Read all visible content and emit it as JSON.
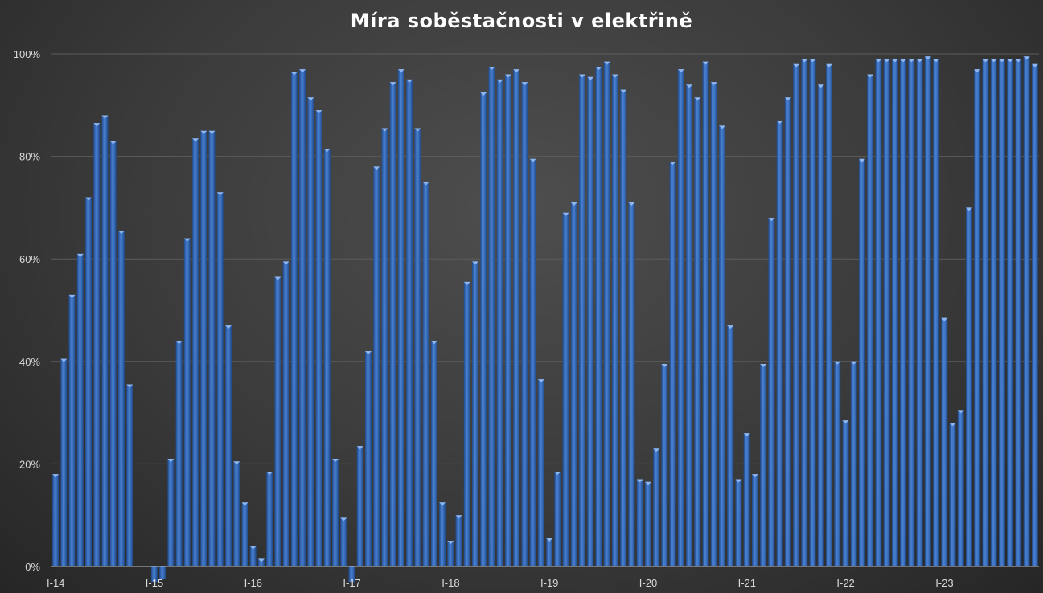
{
  "chart_data": {
    "type": "bar",
    "title": "Míra soběstačnosti v elektřině",
    "xlabel": "",
    "ylabel": "",
    "ylim": [
      0,
      1
    ],
    "y_ticks": [
      "0%",
      "20%",
      "40%",
      "60%",
      "80%",
      "100%"
    ],
    "x_ticks": [
      "I-14",
      "I-15",
      "I-16",
      "I-17",
      "I-18",
      "I-19",
      "I-20",
      "I-21",
      "I-22",
      "I-23"
    ],
    "grid": true,
    "legend": "none",
    "series": [
      {
        "color": "#3a6fc2",
        "values": [
          0.18,
          0.405,
          0.53,
          0.61,
          0.72,
          0.865,
          0.88,
          0.83,
          0.655,
          0.355,
          0.0,
          0.0,
          -0.03,
          -0.025,
          0.21,
          0.44,
          0.64,
          0.835,
          0.85,
          0.85,
          0.73,
          0.47,
          0.205,
          0.125,
          0.04,
          0.015,
          0.185,
          0.565,
          0.595,
          0.965,
          0.97,
          0.915,
          0.89,
          0.815,
          0.21,
          0.095,
          -0.03,
          0.235,
          0.42,
          0.78,
          0.855,
          0.945,
          0.97,
          0.95,
          0.855,
          0.75,
          0.44,
          0.125,
          0.05,
          0.1,
          0.555,
          0.595,
          0.925,
          0.975,
          0.95,
          0.96,
          0.97,
          0.945,
          0.795,
          0.365,
          0.055,
          0.185,
          0.69,
          0.71,
          0.96,
          0.955,
          0.975,
          0.985,
          0.96,
          0.93,
          0.71,
          0.17,
          0.165,
          0.23,
          0.395,
          0.79,
          0.97,
          0.94,
          0.915,
          0.985,
          0.945,
          0.86,
          0.47,
          0.17,
          0.26,
          0.18,
          0.395,
          0.68,
          0.87,
          0.915,
          0.98,
          0.99,
          0.99,
          0.94,
          0.98,
          0.4,
          0.285,
          0.4,
          0.795,
          0.96,
          0.99,
          0.99,
          0.99,
          0.99,
          0.99,
          0.99,
          0.995,
          0.99,
          0.485,
          0.28,
          0.305,
          0.7,
          0.97,
          0.99,
          0.99,
          0.99,
          0.99,
          0.99,
          0.995,
          0.98
        ]
      }
    ]
  }
}
